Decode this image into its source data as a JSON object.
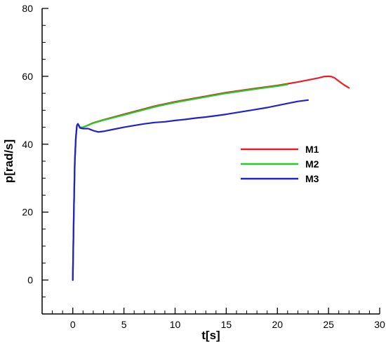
{
  "chart_data": {
    "type": "line",
    "title": "",
    "xlabel": "t[s]",
    "ylabel": "p[rad/s]",
    "xlim": [
      -3,
      30
    ],
    "ylim": [
      -10,
      80
    ],
    "x_ticks": [
      0,
      5,
      10,
      15,
      20,
      25,
      30
    ],
    "y_ticks": [
      0,
      20,
      40,
      60,
      80
    ],
    "x_tick_labels": [
      "0",
      "5",
      "10",
      "15",
      "20",
      "25",
      "30"
    ],
    "y_tick_labels": [
      "0",
      "20",
      "40",
      "60",
      "80"
    ],
    "grid": false,
    "legend_position": "right",
    "series": [
      {
        "name": "M1",
        "color": "#ee1c24",
        "x": [
          0,
          0.1,
          0.2,
          0.3,
          0.4,
          0.5,
          0.7,
          1,
          2,
          3,
          5,
          8,
          10,
          12,
          15,
          18,
          20,
          21,
          22,
          23,
          24,
          24.5,
          25,
          25.3,
          25.6,
          26,
          26.5,
          27
        ],
        "y": [
          0,
          20,
          35,
          42,
          45.5,
          46,
          45,
          45,
          46.3,
          47.2,
          48.8,
          51.2,
          52.5,
          53.6,
          55.2,
          56.5,
          57.3,
          57.8,
          58.3,
          58.9,
          59.5,
          59.9,
          60,
          59.9,
          59.5,
          58.6,
          57.5,
          56.6
        ]
      },
      {
        "name": "M2",
        "color": "#22cc22",
        "x": [
          0,
          0.1,
          0.2,
          0.3,
          0.4,
          0.5,
          0.7,
          1,
          2,
          3,
          5,
          8,
          10,
          12,
          15,
          18,
          20,
          21
        ],
        "y": [
          0,
          20,
          35,
          42,
          45.5,
          46,
          45,
          45,
          46.2,
          47.1,
          48.6,
          51,
          52.3,
          53.4,
          55,
          56.3,
          57.1,
          57.6
        ]
      },
      {
        "name": "M3",
        "color": "#2222cc",
        "x": [
          0,
          0.1,
          0.2,
          0.3,
          0.4,
          0.5,
          0.7,
          1,
          1.5,
          2,
          2.5,
          3,
          4,
          5,
          6,
          7,
          8,
          9,
          10,
          11,
          12,
          13,
          14,
          15,
          16,
          17,
          18,
          19,
          20,
          21,
          22,
          23
        ],
        "y": [
          0,
          20,
          35,
          42,
          45.5,
          46,
          44.8,
          44.6,
          44.6,
          44,
          43.6,
          43.8,
          44.4,
          45,
          45.5,
          46,
          46.4,
          46.6,
          47,
          47.3,
          47.7,
          48,
          48.4,
          48.8,
          49.3,
          49.8,
          50.3,
          50.8,
          51.4,
          52,
          52.6,
          53
        ]
      }
    ]
  }
}
